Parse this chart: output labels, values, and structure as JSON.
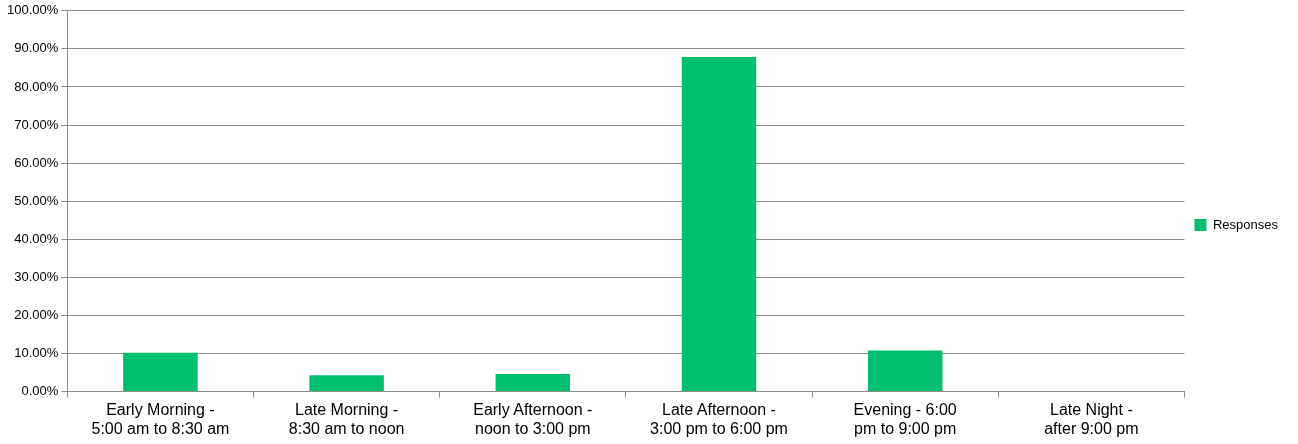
{
  "chart_data": {
    "type": "bar",
    "categories": [
      "Early Morning - 5:00 am to 8:30 am",
      "Late Morning - 8:30 am to noon",
      "Early Afternoon - noon to 3:00 pm",
      "Late Afternoon - 3:00 pm to 6:00 pm",
      "Evening - 6:00 pm to 9:00 pm",
      "Late Night - after 9:00 pm"
    ],
    "series": [
      {
        "name": "Responses",
        "color": "#00bf6f",
        "values": [
          10.2,
          4.3,
          4.6,
          87.9,
          10.8,
          0
        ]
      }
    ],
    "ylim": [
      0,
      100
    ],
    "yticks": [
      {
        "value": 0,
        "label": "0.00%"
      },
      {
        "value": 10,
        "label": "10.00%"
      },
      {
        "value": 20,
        "label": "20.00%"
      },
      {
        "value": 30,
        "label": "30.00%"
      },
      {
        "value": 40,
        "label": "40.00%"
      },
      {
        "value": 50,
        "label": "50.00%"
      },
      {
        "value": 60,
        "label": "60.00%"
      },
      {
        "value": 70,
        "label": "70.00%"
      },
      {
        "value": 80,
        "label": "80.00%"
      },
      {
        "value": 90,
        "label": "90.00%"
      },
      {
        "value": 100,
        "label": "100.00%"
      }
    ],
    "grid": "y",
    "legend": "right"
  }
}
